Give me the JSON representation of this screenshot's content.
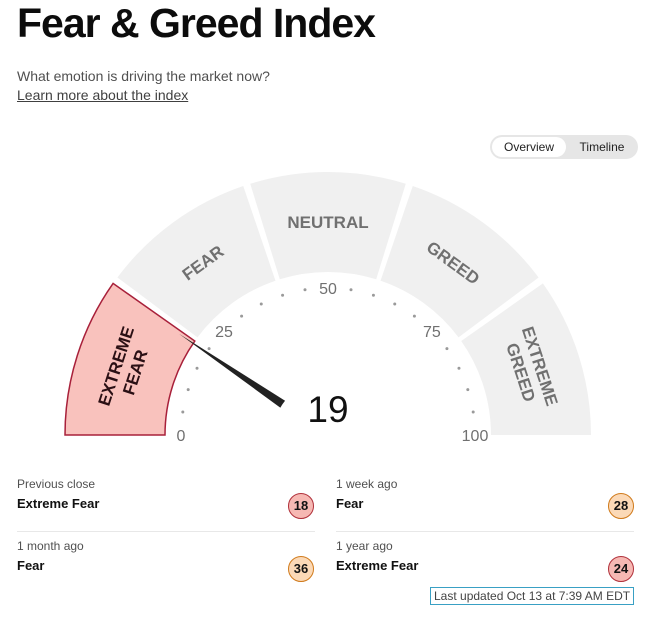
{
  "header": {
    "title": "Fear & Greed Index",
    "subtitle": "What emotion is driving the market now?",
    "learn_more": "Learn more about the index"
  },
  "view_toggle": {
    "options": [
      "Overview",
      "Timeline"
    ],
    "selected": "Overview"
  },
  "gauge": {
    "value": 19,
    "value_label": "19",
    "segments": [
      "EXTREME FEAR",
      "FEAR",
      "NEUTRAL",
      "GREED",
      "EXTREME GREED"
    ],
    "active_segment": "EXTREME FEAR",
    "scale_labels": [
      "0",
      "25",
      "50",
      "75",
      "100"
    ],
    "colors": {
      "inactive": "#f0f0f0",
      "active_fill": "#f9c2bd",
      "active_stroke": "#a8203a",
      "needle": "#222222"
    }
  },
  "history": [
    {
      "when": "Previous close",
      "rating": "Extreme Fear",
      "value": "18",
      "tone": "fear-x"
    },
    {
      "when": "1 week ago",
      "rating": "Fear",
      "value": "28",
      "tone": "fear"
    },
    {
      "when": "1 month ago",
      "rating": "Fear",
      "value": "36",
      "tone": "fear"
    },
    {
      "when": "1 year ago",
      "rating": "Extreme Fear",
      "value": "24",
      "tone": "fear-x"
    }
  ],
  "last_updated": "Last updated Oct 13 at 7:39 AM EDT"
}
